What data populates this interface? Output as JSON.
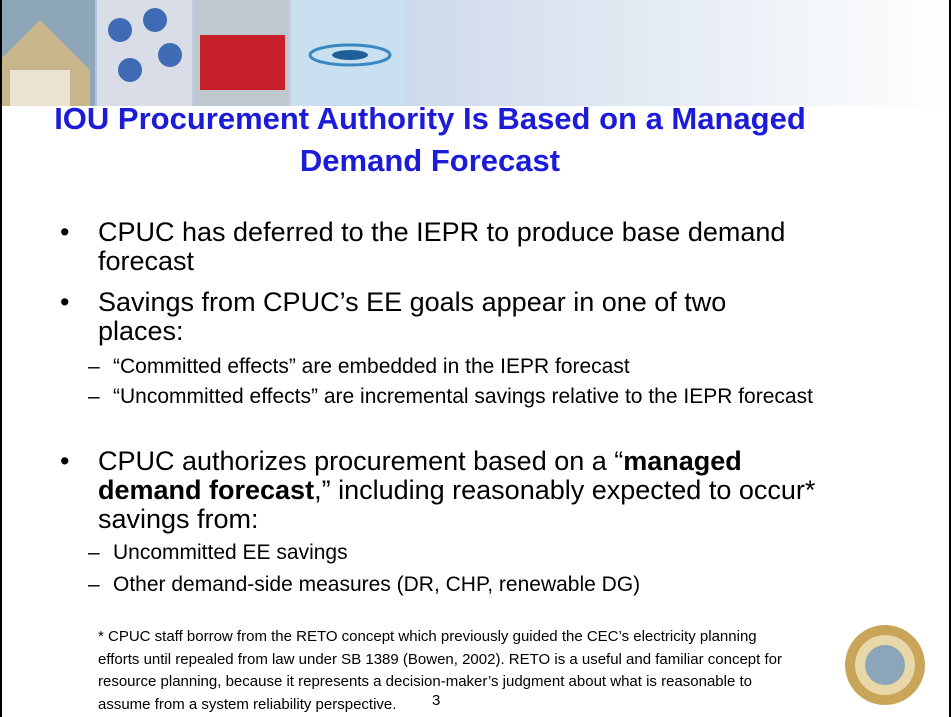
{
  "header": {
    "title": "IOU Procurement Authority Is Based on a Managed Demand Forecast"
  },
  "bullets": [
    {
      "text": "CPUC has deferred to the IEPR to produce base demand forecast"
    },
    {
      "text": "Savings from CPUC’s EE goals appear in one of two places:",
      "sub": [
        "“Committed effects” are embedded in the IEPR forecast",
        "“Uncommitted effects” are incremental savings relative to the IEPR forecast"
      ]
    },
    {
      "text_parts": [
        "CPUC authorizes procurement based on a “",
        "managed demand forecast",
        ",” including reasonably expected to occur* savings from:"
      ],
      "sub": [
        "Uncommitted EE savings",
        "Other demand-side measures (DR, CHP, renewable DG)"
      ]
    }
  ],
  "footnote": "* CPUC staff borrow from the RETO concept which previously guided the CEC’s electricity planning efforts until repealed from law under SB 1389 (Bowen, 2002).  RETO is a useful and familiar concept for resource planning, because it represents a decision-maker’s judgment about what is reasonable to assume from a system reliability perspective.",
  "page_number": "3"
}
